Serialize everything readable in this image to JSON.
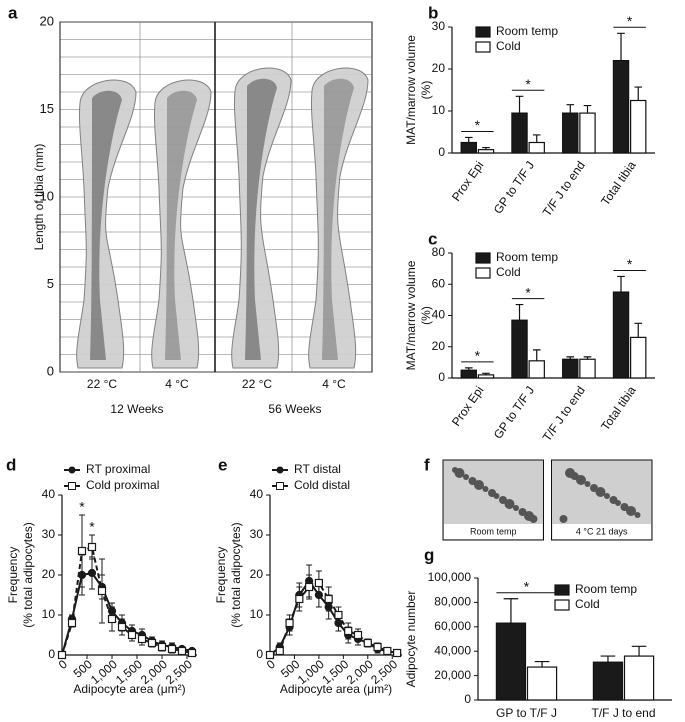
{
  "chart_data": [
    {
      "type": "image-grid",
      "panel": "a",
      "ylabel": [
        "Length of tibia (mm)"
      ],
      "ylim": [
        0,
        20
      ],
      "yticks": [
        0,
        5,
        10,
        15,
        20
      ],
      "minor_yticks": [
        0,
        1,
        2,
        3,
        4,
        5,
        6,
        7,
        8,
        9,
        10,
        11,
        12,
        13,
        14,
        15,
        16,
        17,
        18,
        19,
        20
      ],
      "categories": [
        "22 °C",
        "4 °C",
        "22 °C",
        "4 °C"
      ],
      "groups": [
        "12 Weeks",
        "56 Weeks"
      ]
    },
    {
      "type": "bar",
      "panel": "b",
      "ylabel": [
        "MAT/marrow volume",
        "(%)"
      ],
      "ylim": [
        0,
        30
      ],
      "yticks": [
        0,
        10,
        20,
        30
      ],
      "categories": [
        "Prox Epi",
        "GP to T/F J",
        "T/F J to end",
        "Total tibia"
      ],
      "series": [
        {
          "name": "Room temp",
          "color": "#1a1a1a",
          "values": [
            2.5,
            9.5,
            9.5,
            22
          ],
          "errors": [
            1.2,
            4,
            2,
            6.5
          ]
        },
        {
          "name": "Cold",
          "color": "#ffffff",
          "values": [
            0.8,
            2.5,
            9.5,
            12.5
          ],
          "errors": [
            0.5,
            1.8,
            1.8,
            3.2
          ]
        }
      ],
      "significance": [
        "*",
        "*",
        null,
        "*"
      ]
    },
    {
      "type": "bar",
      "panel": "c",
      "ylabel": [
        "MAT/marrow volume",
        "(%)"
      ],
      "ylim": [
        0,
        80
      ],
      "yticks": [
        0,
        20,
        40,
        60,
        80
      ],
      "categories": [
        "Prox Epi",
        "GP to T/F J",
        "T/F J to end",
        "Total tibia"
      ],
      "series": [
        {
          "name": "Room temp",
          "color": "#1a1a1a",
          "values": [
            5,
            37,
            12,
            55
          ],
          "errors": [
            1.5,
            10,
            1.5,
            10
          ]
        },
        {
          "name": "Cold",
          "color": "#ffffff",
          "values": [
            2,
            11,
            12,
            26
          ],
          "errors": [
            1,
            7,
            1.5,
            9
          ]
        }
      ],
      "significance": [
        "*",
        "*",
        null,
        "*"
      ]
    },
    {
      "type": "line",
      "panel": "d",
      "ylabel": [
        "Frequency",
        "(% total adipocytes)"
      ],
      "xlabel": "Adipocyte area (μm²)",
      "xlim": [
        0,
        2700
      ],
      "xticks": [
        0,
        500,
        {
          "value": 1000,
          "label": "1,000"
        },
        {
          "value": 1500,
          "label": "1,500"
        },
        {
          "value": 2000,
          "label": "2,000"
        },
        {
          "value": 2500,
          "label": "2,500"
        }
      ],
      "ylim": [
        0,
        40
      ],
      "yticks": [
        0,
        10,
        20,
        30,
        40
      ],
      "x": [
        0,
        200,
        400,
        600,
        800,
        1000,
        1200,
        1400,
        1600,
        1800,
        2000,
        2200,
        2400,
        2600
      ],
      "series": [
        {
          "name": "RT proximal",
          "color": "#1a1a1a",
          "marker": "circle",
          "linestyle": "solid",
          "values": [
            0,
            9,
            20,
            20.5,
            17,
            11,
            8,
            6,
            5,
            3.5,
            2.5,
            2,
            1.5,
            1
          ],
          "errors": [
            0,
            1,
            5,
            4,
            3,
            2,
            2,
            1.5,
            1.5,
            1,
            1,
            1,
            0.5,
            0.5
          ]
        },
        {
          "name": "Cold proximal",
          "color": "#1a1a1a",
          "marker": "square",
          "linestyle": "dashed",
          "values": [
            0,
            8,
            26,
            27,
            16,
            9,
            7,
            5,
            4,
            3,
            2,
            1.5,
            1,
            0.5
          ],
          "errors": [
            0,
            1,
            9,
            3,
            8,
            3,
            2,
            1.5,
            1.5,
            1,
            1,
            1,
            0.5,
            0.3
          ]
        }
      ],
      "significance": [
        null,
        null,
        "*",
        "*",
        null,
        null,
        null,
        null,
        null,
        null,
        null,
        null,
        null,
        null
      ]
    },
    {
      "type": "line",
      "panel": "e",
      "ylabel": [
        "Frequency",
        "(% total adipocytes)"
      ],
      "xlabel": "Adipocyte area (μm²)",
      "xlim": [
        0,
        2700
      ],
      "xticks": [
        0,
        500,
        {
          "value": 1000,
          "label": "1,000"
        },
        {
          "value": 1500,
          "label": "1,500"
        },
        {
          "value": 2000,
          "label": "2,000"
        },
        {
          "value": 2500,
          "label": "2,500"
        }
      ],
      "ylim": [
        0,
        40
      ],
      "yticks": [
        0,
        10,
        20,
        30,
        40
      ],
      "x": [
        0,
        200,
        400,
        600,
        800,
        1000,
        1200,
        1400,
        1600,
        1800,
        2000,
        2200,
        2400,
        2600
      ],
      "series": [
        {
          "name": "RT distal",
          "color": "#1a1a1a",
          "marker": "circle",
          "linestyle": "solid",
          "values": [
            0,
            2,
            7,
            15,
            18.5,
            15,
            12,
            8,
            5,
            4,
            3,
            1.5,
            1,
            0.5
          ],
          "errors": [
            0,
            1,
            2,
            3,
            4,
            3,
            3,
            2,
            2,
            1.5,
            1,
            1,
            0.5,
            0.3
          ]
        },
        {
          "name": "Cold distal",
          "color": "#1a1a1a",
          "marker": "square",
          "linestyle": "dashed",
          "values": [
            0,
            1,
            8,
            14,
            17,
            18,
            14,
            10,
            6,
            5,
            3,
            2,
            1,
            0.5
          ],
          "errors": [
            0,
            1,
            2,
            3,
            3,
            3,
            3,
            2,
            2,
            1.5,
            1,
            1,
            0.5,
            0.3
          ]
        }
      ]
    },
    {
      "type": "image",
      "panel": "f",
      "images": [
        {
          "label": "Room temp"
        },
        {
          "label": "4 °C 21 days"
        }
      ]
    },
    {
      "type": "bar",
      "panel": "g",
      "ylabel": [
        "Adipocyte number"
      ],
      "ylim": [
        0,
        100000
      ],
      "yticks": [
        0,
        {
          "value": 20000,
          "label": "20,000"
        },
        {
          "value": 40000,
          "label": "40,000"
        },
        {
          "value": 60000,
          "label": "60,000"
        },
        {
          "value": 80000,
          "label": "80,000"
        },
        {
          "value": 100000,
          "label": "100,000"
        }
      ],
      "categories": [
        "GP to T/F J",
        "T/F J to end"
      ],
      "series": [
        {
          "name": "Room temp",
          "color": "#1a1a1a",
          "values": [
            63000,
            31000
          ],
          "errors": [
            20000,
            5000
          ]
        },
        {
          "name": "Cold",
          "color": "#ffffff",
          "values": [
            27000,
            36000
          ],
          "errors": [
            4500,
            8000
          ]
        }
      ],
      "significance": [
        "*",
        null
      ]
    }
  ]
}
